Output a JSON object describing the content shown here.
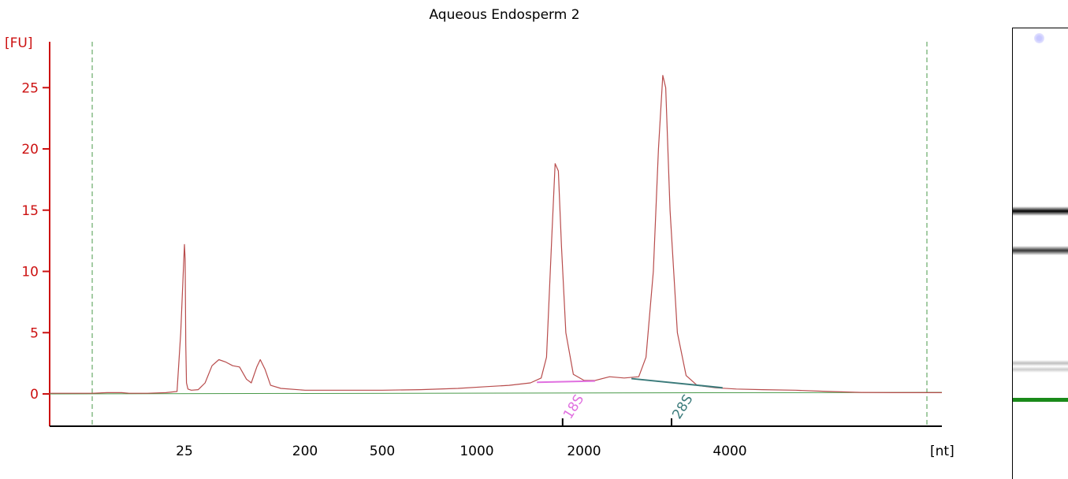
{
  "chart_data": {
    "type": "line",
    "title": "Aqueous Endosperm 2",
    "ylabel": "[FU]",
    "xlabel": "[nt]",
    "ylim": [
      -2.8,
      28
    ],
    "y_ticks": [
      "0",
      "5",
      "10",
      "15",
      "20",
      "25"
    ],
    "x_ticks": [
      "25",
      "200",
      "500",
      "1000",
      "2000",
      "4000"
    ],
    "colors": {
      "electropherogram": "#b84c4c",
      "baseline": "#4a9a4a",
      "axis": "#cc1111",
      "marker_18s": "#e070e0",
      "marker_28s": "#3a7a7a",
      "lower_marker_band": "#1a8a1a"
    },
    "annotations": [
      {
        "label": "18S",
        "x": 1800
      },
      {
        "label": "28S",
        "x": 3200
      }
    ],
    "series": [
      {
        "values": [
          [
            0,
            0.05
          ],
          [
            4,
            0.1
          ],
          [
            8,
            0.1
          ],
          [
            10,
            0.05
          ],
          [
            15,
            0.05
          ],
          [
            20,
            0.1
          ],
          [
            23,
            0.2
          ],
          [
            24,
            5
          ],
          [
            25,
            12.2
          ],
          [
            26,
            11
          ],
          [
            27,
            4
          ],
          [
            28,
            0.9
          ],
          [
            30,
            0.4
          ],
          [
            35,
            0.3
          ],
          [
            45,
            0.35
          ],
          [
            55,
            0.9
          ],
          [
            65,
            2.3
          ],
          [
            75,
            2.8
          ],
          [
            85,
            2.6
          ],
          [
            95,
            2.3
          ],
          [
            105,
            2.2
          ],
          [
            115,
            1.2
          ],
          [
            122,
            0.9
          ],
          [
            130,
            2.2
          ],
          [
            135,
            2.8
          ],
          [
            142,
            2.0
          ],
          [
            150,
            0.7
          ],
          [
            165,
            0.45
          ],
          [
            200,
            0.3
          ],
          [
            300,
            0.3
          ],
          [
            500,
            0.3
          ],
          [
            700,
            0.35
          ],
          [
            900,
            0.45
          ],
          [
            1100,
            0.6
          ],
          [
            1300,
            0.7
          ],
          [
            1500,
            0.9
          ],
          [
            1600,
            1.3
          ],
          [
            1650,
            3
          ],
          [
            1700,
            13
          ],
          [
            1730,
            18.8
          ],
          [
            1760,
            18.2
          ],
          [
            1790,
            12
          ],
          [
            1830,
            5
          ],
          [
            1900,
            1.6
          ],
          [
            2000,
            1.1
          ],
          [
            2150,
            1.1
          ],
          [
            2350,
            1.4
          ],
          [
            2550,
            1.3
          ],
          [
            2750,
            1.4
          ],
          [
            2850,
            3
          ],
          [
            2950,
            10
          ],
          [
            3020,
            20
          ],
          [
            3080,
            26
          ],
          [
            3120,
            25
          ],
          [
            3180,
            15
          ],
          [
            3280,
            5
          ],
          [
            3400,
            1.5
          ],
          [
            3550,
            0.7
          ],
          [
            3800,
            0.5
          ],
          [
            4100,
            0.4
          ],
          [
            4500,
            0.35
          ],
          [
            5000,
            0.3
          ],
          [
            5500,
            0.2
          ],
          [
            6000,
            0.12
          ],
          [
            6500,
            0.1
          ],
          [
            7000,
            0.1
          ]
        ]
      }
    ],
    "gel_bands": [
      {
        "position": 0.406,
        "intensity": 1.0
      },
      {
        "position": 0.493,
        "intensity": 0.8
      },
      {
        "position": 0.743,
        "intensity": 0.25
      },
      {
        "position": 0.757,
        "intensity": 0.2
      }
    ]
  }
}
